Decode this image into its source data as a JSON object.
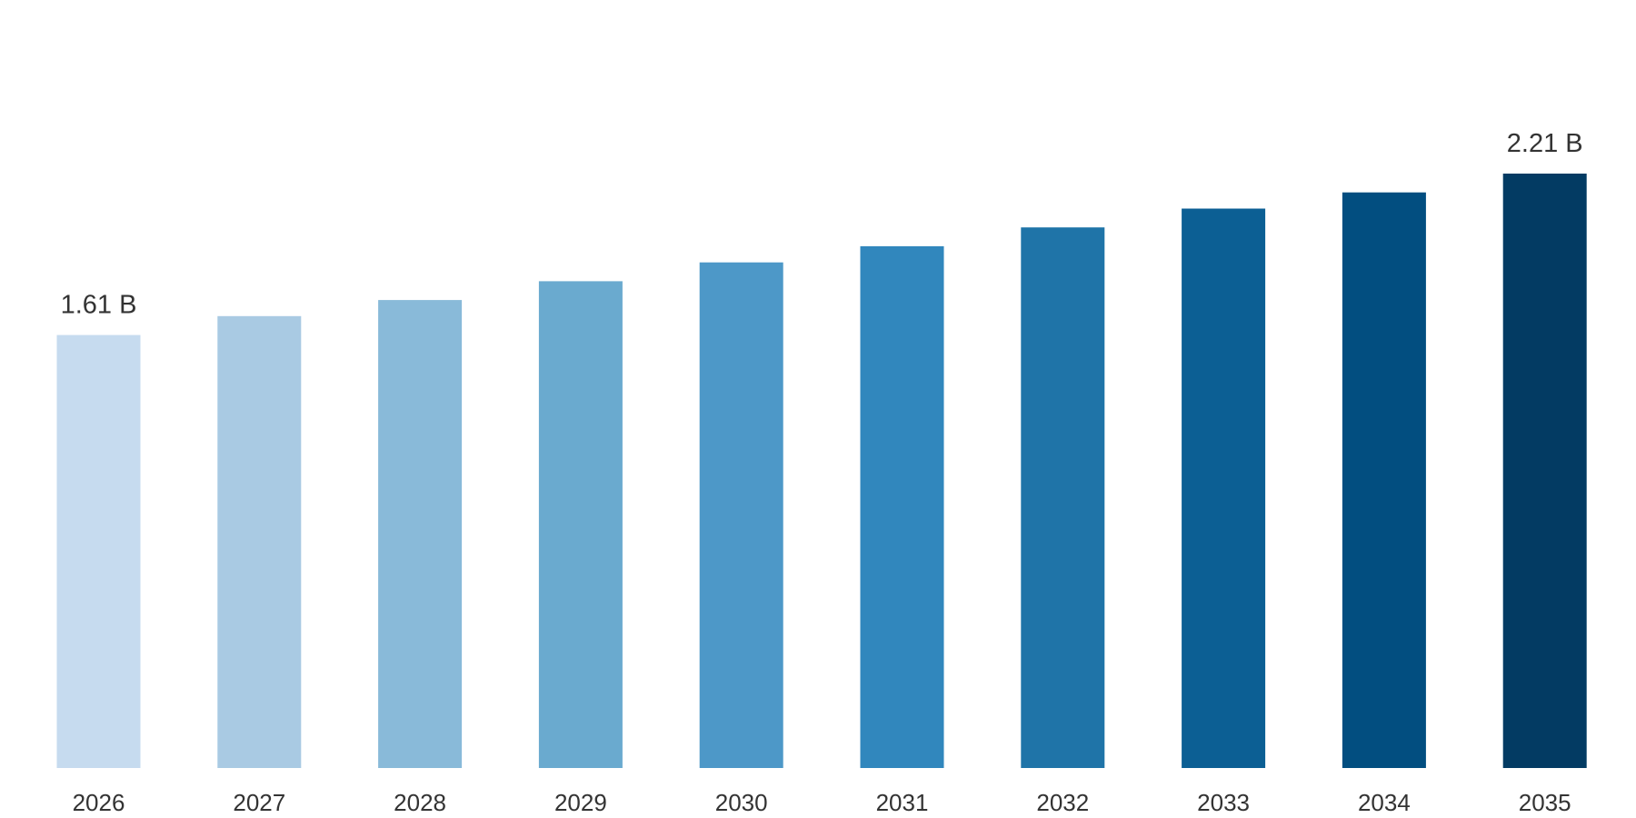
{
  "chart_data": {
    "type": "bar",
    "title": "",
    "xlabel": "",
    "ylabel": "",
    "categories": [
      "2026",
      "2027",
      "2028",
      "2029",
      "2030",
      "2031",
      "2032",
      "2033",
      "2034",
      "2035"
    ],
    "values": [
      1.61,
      1.68,
      1.74,
      1.81,
      1.88,
      1.94,
      2.01,
      2.08,
      2.14,
      2.21
    ],
    "unit": "B",
    "ylim": [
      0,
      2.21
    ],
    "grid": false,
    "legend": "none",
    "data_labels": [
      {
        "index": 0,
        "text": "1.61 B"
      },
      {
        "index": 9,
        "text": "2.21 B"
      }
    ],
    "colors": [
      "#c6dbef",
      "#a9cae3",
      "#89bad9",
      "#6aaacf",
      "#4d98c8",
      "#3187bd",
      "#1f74a8",
      "#0c5f94",
      "#024e80",
      "#033b63"
    ]
  }
}
